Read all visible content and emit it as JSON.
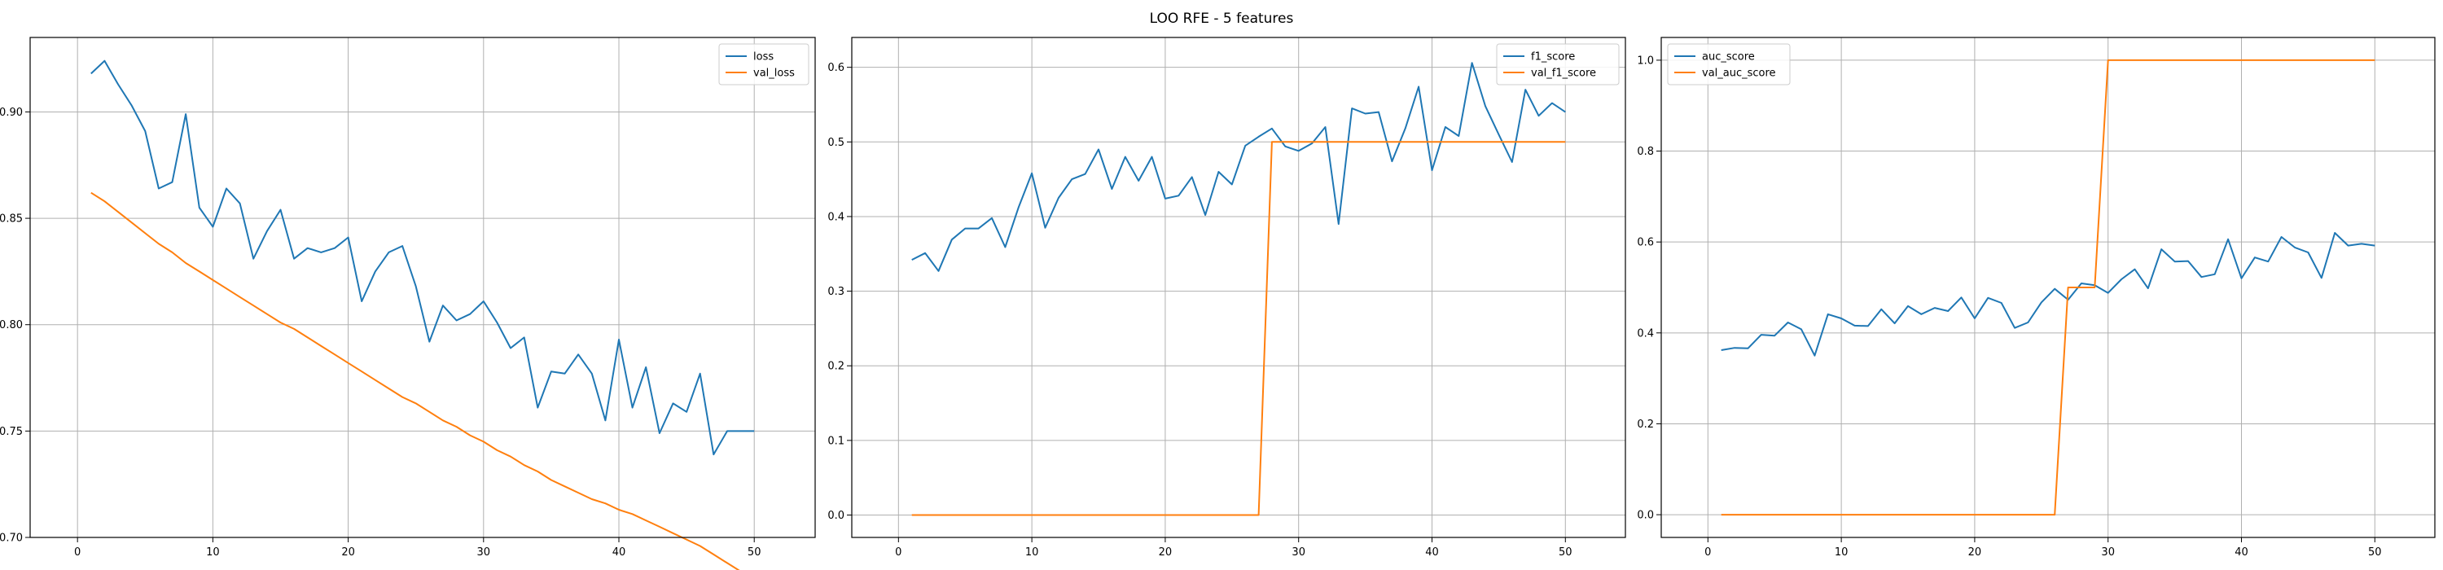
{
  "figure": {
    "title": "LOO RFE - 5 features"
  },
  "colors": {
    "series1": "#1f77b4",
    "series2": "#ff7f0e",
    "grid": "#b0b0b0",
    "axis": "#000000"
  },
  "chart_data": [
    {
      "type": "line",
      "title": "",
      "xlabel": "",
      "ylabel": "",
      "xlim": [
        -3.5,
        54.5
      ],
      "ylim": [
        0.7,
        0.935
      ],
      "xticks": [
        0,
        10,
        20,
        30,
        40,
        50
      ],
      "yticks": [
        0.7,
        0.75,
        0.8,
        0.85,
        0.9
      ],
      "tick_labels_y": [
        "0.70",
        "0.75",
        "0.80",
        "0.85",
        "0.90"
      ],
      "grid": true,
      "legend_position": "top-right",
      "x": [
        1,
        2,
        3,
        4,
        5,
        6,
        7,
        8,
        9,
        10,
        11,
        12,
        13,
        14,
        15,
        16,
        17,
        18,
        19,
        20,
        21,
        22,
        23,
        24,
        25,
        26,
        27,
        28,
        29,
        30,
        31,
        32,
        33,
        34,
        35,
        36,
        37,
        38,
        39,
        40,
        41,
        42,
        43,
        44,
        45,
        46,
        47,
        48,
        49,
        50
      ],
      "series": [
        {
          "name": "loss",
          "color": "#1f77b4",
          "values": [
            0.918,
            0.924,
            0.913,
            0.903,
            0.891,
            0.864,
            0.867,
            0.899,
            0.855,
            0.846,
            0.864,
            0.857,
            0.831,
            0.844,
            0.854,
            0.831,
            0.836,
            0.834,
            0.836,
            0.841,
            0.811,
            0.825,
            0.834,
            0.837,
            0.818,
            0.792,
            0.809,
            0.802,
            0.805,
            0.811,
            0.801,
            0.789,
            0.794,
            0.761,
            0.778,
            0.777,
            0.786,
            0.777,
            0.755,
            0.793,
            0.761,
            0.78,
            0.749,
            0.763,
            0.759,
            0.777,
            0.739,
            0.75,
            0.75,
            0.75
          ]
        },
        {
          "name": "val_loss",
          "color": "#ff7f0e",
          "values": [
            0.862,
            0.858,
            0.853,
            0.848,
            0.843,
            0.838,
            0.834,
            0.829,
            0.825,
            0.821,
            0.817,
            0.813,
            0.809,
            0.805,
            0.801,
            0.798,
            0.794,
            0.79,
            0.786,
            0.782,
            0.778,
            0.774,
            0.77,
            0.766,
            0.763,
            0.759,
            0.755,
            0.752,
            0.748,
            0.745,
            0.741,
            0.738,
            0.734,
            0.731,
            0.727,
            0.724,
            0.721,
            0.718,
            0.716,
            0.713,
            0.711,
            0.708,
            0.705,
            0.702,
            0.699,
            0.696,
            0.692,
            0.688,
            0.684,
            0.68
          ]
        }
      ]
    },
    {
      "type": "line",
      "title": "",
      "xlabel": "",
      "ylabel": "",
      "xlim": [
        -3.5,
        54.5
      ],
      "ylim": [
        -0.03,
        0.64
      ],
      "xticks": [
        0,
        10,
        20,
        30,
        40,
        50
      ],
      "yticks": [
        0.0,
        0.1,
        0.2,
        0.3,
        0.4,
        0.5,
        0.6
      ],
      "tick_labels_y": [
        "0.0",
        "0.1",
        "0.2",
        "0.3",
        "0.4",
        "0.5",
        "0.6"
      ],
      "grid": true,
      "legend_position": "top-right",
      "x": [
        1,
        2,
        3,
        4,
        5,
        6,
        7,
        8,
        9,
        10,
        11,
        12,
        13,
        14,
        15,
        16,
        17,
        18,
        19,
        20,
        21,
        22,
        23,
        24,
        25,
        26,
        27,
        28,
        29,
        30,
        31,
        32,
        33,
        34,
        35,
        36,
        37,
        38,
        39,
        40,
        41,
        42,
        43,
        44,
        45,
        46,
        47,
        48,
        49,
        50
      ],
      "series": [
        {
          "name": "f1_score",
          "color": "#1f77b4",
          "values": [
            0.342,
            0.351,
            0.327,
            0.369,
            0.384,
            0.384,
            0.398,
            0.359,
            0.412,
            0.458,
            0.385,
            0.425,
            0.45,
            0.457,
            0.49,
            0.437,
            0.48,
            0.448,
            0.48,
            0.424,
            0.428,
            0.453,
            0.402,
            0.46,
            0.443,
            0.495,
            0.507,
            0.518,
            0.494,
            0.488,
            0.498,
            0.52,
            0.39,
            0.545,
            0.538,
            0.54,
            0.474,
            0.518,
            0.574,
            0.462,
            0.52,
            0.508,
            0.606,
            0.548,
            0.51,
            0.473,
            0.57,
            0.535,
            0.552,
            0.54
          ]
        },
        {
          "name": "val_f1_score",
          "color": "#ff7f0e",
          "values": [
            0,
            0,
            0,
            0,
            0,
            0,
            0,
            0,
            0,
            0,
            0,
            0,
            0,
            0,
            0,
            0,
            0,
            0,
            0,
            0,
            0,
            0,
            0,
            0,
            0,
            0,
            0,
            0.5,
            0.5,
            0.5,
            0.5,
            0.5,
            0.5,
            0.5,
            0.5,
            0.5,
            0.5,
            0.5,
            0.5,
            0.5,
            0.5,
            0.5,
            0.5,
            0.5,
            0.5,
            0.5,
            0.5,
            0.5,
            0.5,
            0.5
          ]
        }
      ]
    },
    {
      "type": "line",
      "title": "",
      "xlabel": "",
      "ylabel": "",
      "xlim": [
        -3.5,
        54.5
      ],
      "ylim": [
        -0.05,
        1.05
      ],
      "xticks": [
        0,
        10,
        20,
        30,
        40,
        50
      ],
      "yticks": [
        0.0,
        0.2,
        0.4,
        0.6,
        0.8,
        1.0
      ],
      "tick_labels_y": [
        "0.0",
        "0.2",
        "0.4",
        "0.6",
        "0.8",
        "1.0"
      ],
      "grid": true,
      "legend_position": "top-left",
      "x": [
        1,
        2,
        3,
        4,
        5,
        6,
        7,
        8,
        9,
        10,
        11,
        12,
        13,
        14,
        15,
        16,
        17,
        18,
        19,
        20,
        21,
        22,
        23,
        24,
        25,
        26,
        27,
        28,
        29,
        30,
        31,
        32,
        33,
        34,
        35,
        36,
        37,
        38,
        39,
        40,
        41,
        42,
        43,
        44,
        45,
        46,
        47,
        48,
        49,
        50
      ],
      "series": [
        {
          "name": "auc_score",
          "color": "#1f77b4",
          "values": [
            0.362,
            0.367,
            0.366,
            0.396,
            0.394,
            0.423,
            0.408,
            0.35,
            0.441,
            0.432,
            0.416,
            0.415,
            0.452,
            0.421,
            0.459,
            0.441,
            0.455,
            0.448,
            0.478,
            0.432,
            0.477,
            0.466,
            0.411,
            0.423,
            0.467,
            0.497,
            0.473,
            0.509,
            0.505,
            0.488,
            0.518,
            0.54,
            0.498,
            0.584,
            0.557,
            0.558,
            0.523,
            0.529,
            0.606,
            0.52,
            0.566,
            0.557,
            0.611,
            0.588,
            0.577,
            0.521,
            0.62,
            0.592,
            0.596,
            0.592
          ]
        },
        {
          "name": "val_auc_score",
          "color": "#ff7f0e",
          "values": [
            0,
            0,
            0,
            0,
            0,
            0,
            0,
            0,
            0,
            0,
            0,
            0,
            0,
            0,
            0,
            0,
            0,
            0,
            0,
            0,
            0,
            0,
            0,
            0,
            0,
            0,
            0.5,
            0.5,
            0.5,
            1,
            1,
            1,
            1,
            1,
            1,
            1,
            1,
            1,
            1,
            1,
            1,
            1,
            1,
            1,
            1,
            1,
            1,
            1,
            1,
            1
          ]
        }
      ]
    }
  ]
}
